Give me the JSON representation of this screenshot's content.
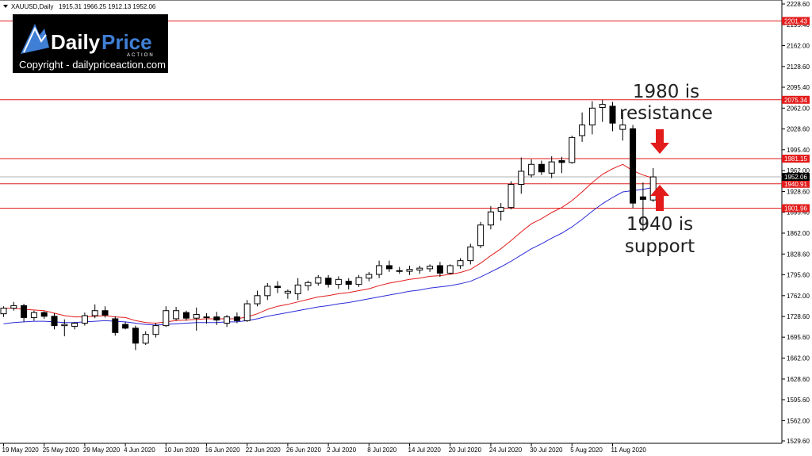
{
  "header": {
    "symbol_label": "XAUUSD,Daily",
    "ohlc": "1915.31 1966.25 1912.13 1952.06"
  },
  "logo": {
    "brand_main": "Daily",
    "brand_accent": "Price",
    "brand_sub": "ACTION",
    "copyright": "Copyright - dailypriceaction.com"
  },
  "annotations": {
    "resistance": [
      "1980 is",
      "resistance"
    ],
    "support": [
      "1940 is",
      "support"
    ]
  },
  "colors": {
    "bull_fill": "#ffffff",
    "bear_fill": "#000000",
    "level_line": "#e31b1b",
    "ema_fast": "#e31b1b",
    "ema_slow": "#2b2bd9",
    "arrow": "#e31b1b",
    "logo_bg": "#000000",
    "logo_accent": "#3f7fd6"
  },
  "chart_data": {
    "type": "candlestick",
    "symbol": "XAUUSD",
    "timeframe": "Daily",
    "ylim": [
      1529.6,
      2228.6
    ],
    "y_ticks": [
      "2228.60",
      "2195.40",
      "2162.00",
      "2128.60",
      "2095.40",
      "2062.00",
      "2028.60",
      "1995.40",
      "1962.00",
      "1928.60",
      "1895.40",
      "1862.00",
      "1828.60",
      "1795.60",
      "1762.00",
      "1728.60",
      "1695.60",
      "1662.00",
      "1628.60",
      "1595.60",
      "1562.00",
      "1529.60"
    ],
    "x_tick_labels": [
      "19 May 2020",
      "25 May 2020",
      "29 May 2020",
      "4 Jun 2020",
      "10 Jun 2020",
      "16 Jun 2020",
      "22 Jun 2020",
      "26 Jun 2020",
      "2 Jul 2020",
      "8 Jul 2020",
      "14 Jul 2020",
      "20 Jul 2020",
      "24 Jul 2020",
      "30 Jul 2020",
      "5 Aug 2020",
      "11 Aug 2020"
    ],
    "x_tick_index": [
      0,
      4,
      8,
      12,
      16,
      20,
      24,
      28,
      32,
      36,
      40,
      44,
      48,
      52,
      56,
      60
    ],
    "levels": [
      {
        "value": 2201.43,
        "label": "2201.43"
      },
      {
        "value": 2075.34,
        "label": "2075.34"
      },
      {
        "value": 1981.15,
        "label": "1981.15"
      },
      {
        "value": 1940.91,
        "label": "1940.91"
      },
      {
        "value": 1901.96,
        "label": "1901.96"
      }
    ],
    "current_price": {
      "value": 1952.06,
      "label": "1952.06"
    },
    "candles": [
      {
        "o": 1733,
        "h": 1745,
        "l": 1728,
        "c": 1742
      },
      {
        "o": 1742,
        "h": 1752,
        "l": 1738,
        "c": 1746
      },
      {
        "o": 1746,
        "h": 1749,
        "l": 1720,
        "c": 1727
      },
      {
        "o": 1727,
        "h": 1738,
        "l": 1722,
        "c": 1735
      },
      {
        "o": 1735,
        "h": 1737,
        "l": 1725,
        "c": 1729
      },
      {
        "o": 1729,
        "h": 1734,
        "l": 1708,
        "c": 1714
      },
      {
        "o": 1714,
        "h": 1724,
        "l": 1697,
        "c": 1716
      },
      {
        "o": 1713,
        "h": 1720,
        "l": 1708,
        "c": 1718
      },
      {
        "o": 1718,
        "h": 1735,
        "l": 1714,
        "c": 1730
      },
      {
        "o": 1730,
        "h": 1748,
        "l": 1726,
        "c": 1738
      },
      {
        "o": 1738,
        "h": 1745,
        "l": 1727,
        "c": 1731
      },
      {
        "o": 1725,
        "h": 1729,
        "l": 1698,
        "c": 1703
      },
      {
        "o": 1716,
        "h": 1720,
        "l": 1708,
        "c": 1710
      },
      {
        "o": 1710,
        "h": 1714,
        "l": 1675,
        "c": 1686
      },
      {
        "o": 1686,
        "h": 1705,
        "l": 1683,
        "c": 1700
      },
      {
        "o": 1700,
        "h": 1718,
        "l": 1695,
        "c": 1714
      },
      {
        "o": 1714,
        "h": 1745,
        "l": 1712,
        "c": 1738
      },
      {
        "o": 1725,
        "h": 1744,
        "l": 1722,
        "c": 1738
      },
      {
        "o": 1735,
        "h": 1738,
        "l": 1722,
        "c": 1726
      },
      {
        "o": 1726,
        "h": 1743,
        "l": 1706,
        "c": 1732
      },
      {
        "o": 1727,
        "h": 1734,
        "l": 1717,
        "c": 1728
      },
      {
        "o": 1728,
        "h": 1736,
        "l": 1715,
        "c": 1723
      },
      {
        "o": 1718,
        "h": 1731,
        "l": 1712,
        "c": 1728
      },
      {
        "o": 1728,
        "h": 1735,
        "l": 1718,
        "c": 1722
      },
      {
        "o": 1722,
        "h": 1755,
        "l": 1720,
        "c": 1749
      },
      {
        "o": 1749,
        "h": 1770,
        "l": 1745,
        "c": 1762
      },
      {
        "o": 1762,
        "h": 1782,
        "l": 1755,
        "c": 1777
      },
      {
        "o": 1777,
        "h": 1785,
        "l": 1766,
        "c": 1775
      },
      {
        "o": 1766,
        "h": 1772,
        "l": 1757,
        "c": 1769
      },
      {
        "o": 1765,
        "h": 1790,
        "l": 1755,
        "c": 1779
      },
      {
        "o": 1778,
        "h": 1786,
        "l": 1770,
        "c": 1783
      },
      {
        "o": 1782,
        "h": 1795,
        "l": 1778,
        "c": 1791
      },
      {
        "o": 1790,
        "h": 1795,
        "l": 1775,
        "c": 1780
      },
      {
        "o": 1780,
        "h": 1793,
        "l": 1773,
        "c": 1788
      },
      {
        "o": 1785,
        "h": 1790,
        "l": 1772,
        "c": 1780
      },
      {
        "o": 1780,
        "h": 1795,
        "l": 1776,
        "c": 1791
      },
      {
        "o": 1790,
        "h": 1800,
        "l": 1785,
        "c": 1796
      },
      {
        "o": 1796,
        "h": 1818,
        "l": 1790,
        "c": 1810
      },
      {
        "o": 1810,
        "h": 1818,
        "l": 1800,
        "c": 1805
      },
      {
        "o": 1802,
        "h": 1808,
        "l": 1797,
        "c": 1801
      },
      {
        "o": 1801,
        "h": 1810,
        "l": 1795,
        "c": 1804
      },
      {
        "o": 1803,
        "h": 1810,
        "l": 1797,
        "c": 1806
      },
      {
        "o": 1805,
        "h": 1812,
        "l": 1800,
        "c": 1809
      },
      {
        "o": 1810,
        "h": 1816,
        "l": 1792,
        "c": 1798
      },
      {
        "o": 1798,
        "h": 1812,
        "l": 1796,
        "c": 1810
      },
      {
        "o": 1810,
        "h": 1822,
        "l": 1805,
        "c": 1818
      },
      {
        "o": 1818,
        "h": 1845,
        "l": 1812,
        "c": 1840
      },
      {
        "o": 1842,
        "h": 1880,
        "l": 1838,
        "c": 1875
      },
      {
        "o": 1875,
        "h": 1905,
        "l": 1868,
        "c": 1896
      },
      {
        "o": 1897,
        "h": 1910,
        "l": 1882,
        "c": 1903
      },
      {
        "o": 1903,
        "h": 1945,
        "l": 1900,
        "c": 1940
      },
      {
        "o": 1940,
        "h": 1983,
        "l": 1925,
        "c": 1961
      },
      {
        "o": 1955,
        "h": 1980,
        "l": 1951,
        "c": 1972
      },
      {
        "o": 1972,
        "h": 1978,
        "l": 1955,
        "c": 1960
      },
      {
        "o": 1958,
        "h": 1985,
        "l": 1950,
        "c": 1976
      },
      {
        "o": 1978,
        "h": 1984,
        "l": 1958,
        "c": 1975
      },
      {
        "o": 1975,
        "h": 2018,
        "l": 1973,
        "c": 2015
      },
      {
        "o": 2018,
        "h": 2055,
        "l": 2008,
        "c": 2035
      },
      {
        "o": 2035,
        "h": 2073,
        "l": 2020,
        "c": 2062
      },
      {
        "o": 2063,
        "h": 2075,
        "l": 2040,
        "c": 2068
      },
      {
        "o": 2065,
        "h": 2072,
        "l": 2025,
        "c": 2038
      },
      {
        "o": 2028,
        "h": 2055,
        "l": 2010,
        "c": 2035
      },
      {
        "o": 2029,
        "h": 2035,
        "l": 1902,
        "c": 1910
      },
      {
        "o": 1920,
        "h": 1943,
        "l": 1865,
        "c": 1916
      },
      {
        "o": 1915,
        "h": 1966,
        "l": 1912,
        "c": 1952
      }
    ],
    "series": [
      {
        "type": "line",
        "color_key": "ema_fast",
        "values": [
          1742,
          1742,
          1740,
          1739,
          1738,
          1734,
          1730,
          1728,
          1728,
          1729,
          1730,
          1728,
          1727,
          1722,
          1719,
          1718,
          1720,
          1722,
          1723,
          1724,
          1725,
          1725,
          1725,
          1725,
          1728,
          1733,
          1740,
          1745,
          1748,
          1752,
          1756,
          1760,
          1762,
          1765,
          1767,
          1770,
          1773,
          1778,
          1782,
          1785,
          1788,
          1790,
          1793,
          1794,
          1796,
          1799,
          1804,
          1814,
          1826,
          1837,
          1850,
          1864,
          1877,
          1885,
          1895,
          1903,
          1914,
          1928,
          1943,
          1956,
          1965,
          1972,
          1962,
          1955,
          1950
        ]
      },
      {
        "type": "line",
        "color_key": "ema_slow",
        "values": [
          1717,
          1719,
          1720,
          1721,
          1721,
          1720,
          1719,
          1719,
          1720,
          1721,
          1722,
          1721,
          1720,
          1718,
          1716,
          1715,
          1716,
          1717,
          1718,
          1719,
          1719,
          1719,
          1720,
          1720,
          1722,
          1725,
          1729,
          1732,
          1735,
          1738,
          1741,
          1744,
          1746,
          1749,
          1751,
          1754,
          1757,
          1760,
          1763,
          1766,
          1769,
          1771,
          1774,
          1776,
          1778,
          1781,
          1785,
          1792,
          1800,
          1808,
          1817,
          1827,
          1837,
          1845,
          1854,
          1862,
          1872,
          1884,
          1897,
          1909,
          1919,
          1928,
          1930,
          1932,
          1935
        ]
      }
    ]
  }
}
